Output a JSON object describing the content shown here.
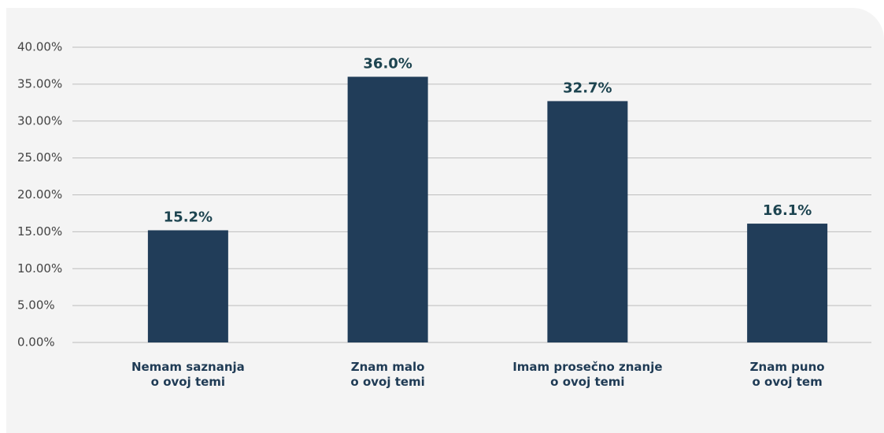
{
  "chart_data": {
    "type": "bar",
    "categories": [
      "Nemam saznanja\no ovoj temi",
      "Znam malo\no ovoj temi",
      "Imam prosečno znanje\no ovoj temi",
      "Znam puno\no ovoj tem"
    ],
    "values": [
      15.2,
      36.0,
      32.7,
      16.1
    ],
    "value_labels": [
      "15.2%",
      "36.0%",
      "32.7%",
      "16.1%"
    ],
    "color": "#213d59",
    "ylim": [
      0,
      40
    ],
    "yticks": [
      {
        "value": 0,
        "label": "0.00%"
      },
      {
        "value": 5,
        "label": "5.00%"
      },
      {
        "value": 10,
        "label": "10.00%"
      },
      {
        "value": 15,
        "label": "15.00%"
      },
      {
        "value": 20,
        "label": "20.00%"
      },
      {
        "value": 25,
        "label": "25.00%"
      },
      {
        "value": 30,
        "label": "30.00%"
      },
      {
        "value": 35,
        "label": "35.00%"
      },
      {
        "value": 40,
        "label": "40.00%"
      }
    ],
    "grid": true
  }
}
